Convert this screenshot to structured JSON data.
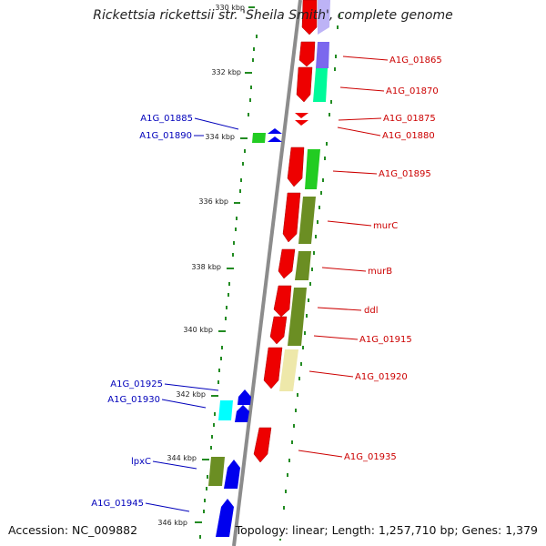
{
  "title": "Rickettsia rickettsii str. 'Sheila Smith', complete genome",
  "accession": "Accession: NC_009882",
  "summary": "Topology: linear; Length: 1,257,710 bp; Genes: 1,379",
  "colors": {
    "axis": "#8c8c8c",
    "tick": "#228b22",
    "right_label": "#cc0000",
    "left_label": "#0000bb",
    "cds_red": "#ee0000",
    "cds_blue": "#0000ee",
    "cds_green": "#22cc22",
    "cds_olive": "#6b8e23",
    "cds_purple": "#7b68ee",
    "cds_aqua": "#00fa9a",
    "cds_khaki": "#eee8aa",
    "cds_cyan": "#00ffff"
  },
  "kbp_markers": [
    "330 kbp",
    "332 kbp",
    "334 kbp",
    "336 kbp",
    "338 kbp",
    "340 kbp",
    "342 kbp",
    "344 kbp",
    "346 kbp"
  ],
  "right_genes": [
    "A1G_01865",
    "A1G_01870",
    "A1G_01875",
    "A1G_01880",
    "A1G_01895",
    "murC",
    "murB",
    "ddl",
    "A1G_01915",
    "A1G_01920",
    "A1G_01935"
  ],
  "left_genes": [
    "A1G_01885",
    "A1G_01890",
    "A1G_01925",
    "A1G_01930",
    "lpxC",
    "A1G_01945"
  ]
}
